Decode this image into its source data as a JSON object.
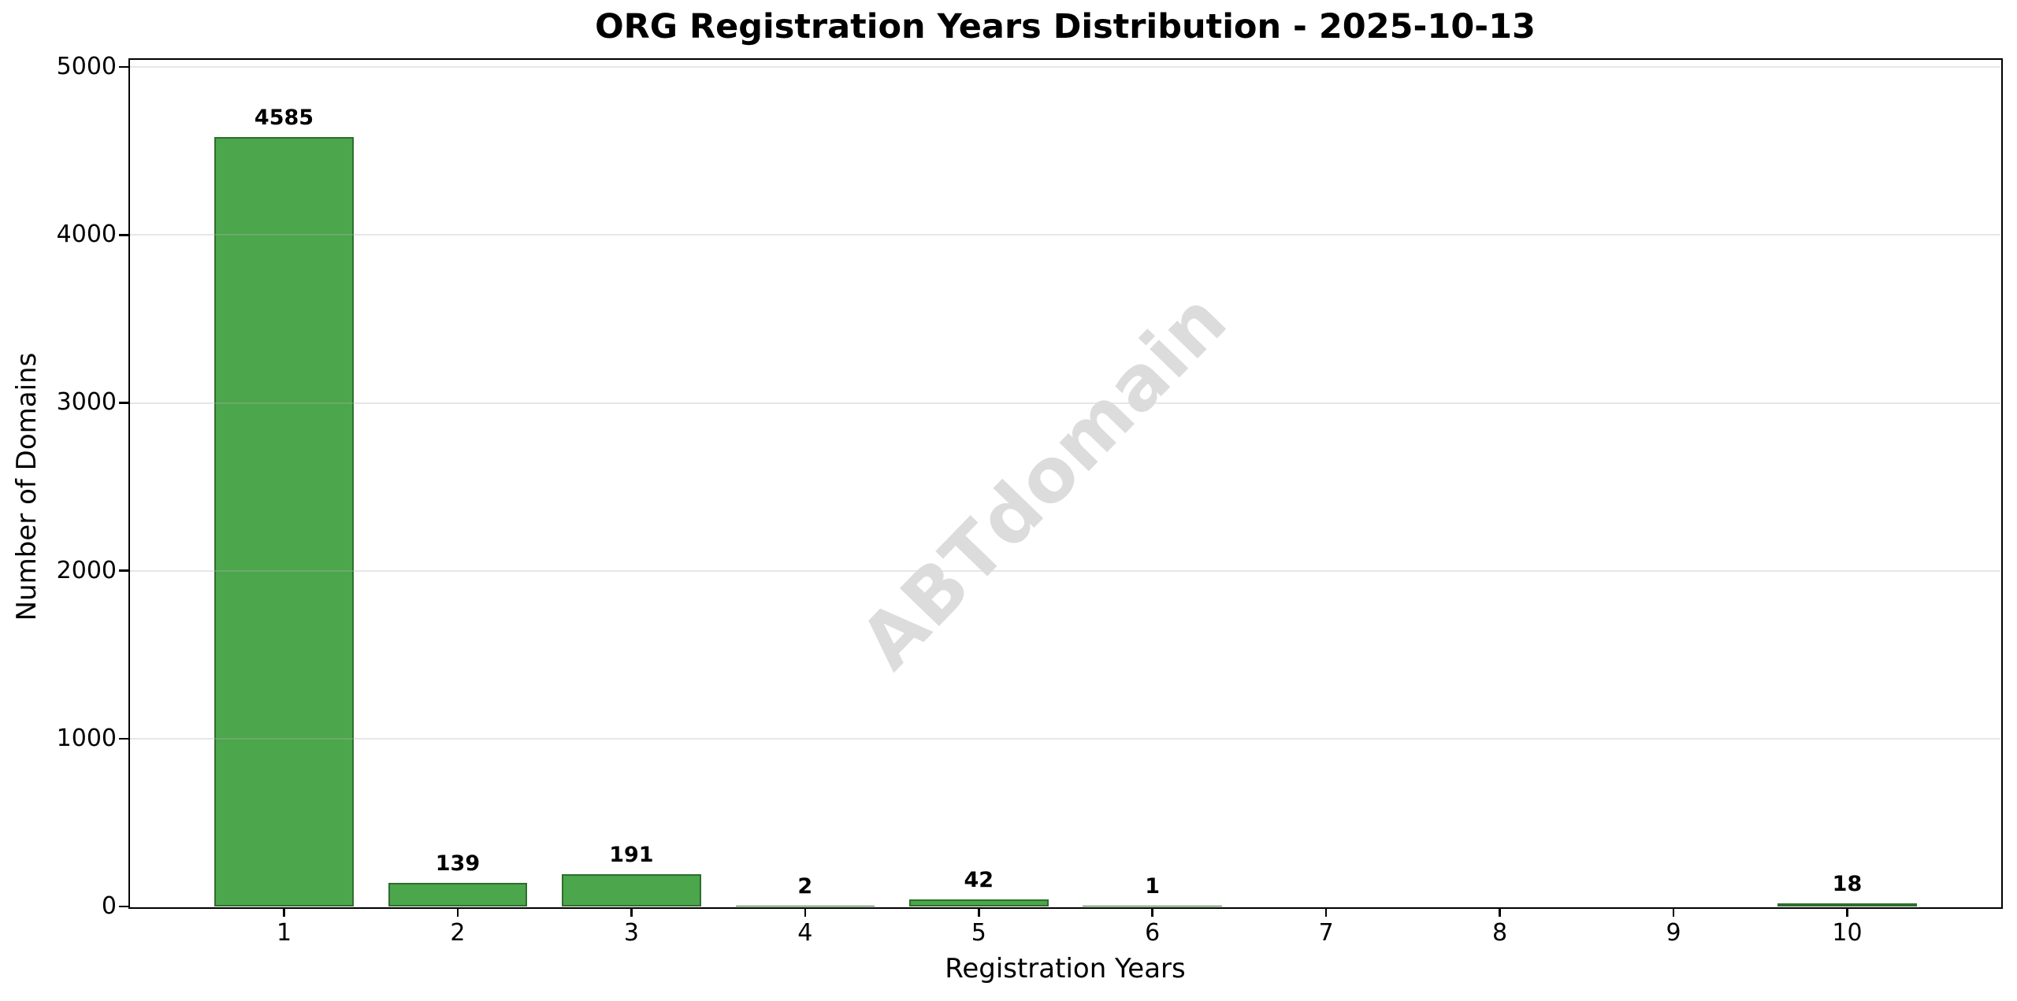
{
  "chart_data": {
    "type": "bar",
    "title": "ORG Registration Years Distribution - 2025-10-13",
    "xlabel": "Registration Years",
    "ylabel": "Number of Domains",
    "categories": [
      "1",
      "2",
      "3",
      "4",
      "5",
      "6",
      "7",
      "8",
      "9",
      "10"
    ],
    "values": [
      4585,
      139,
      191,
      2,
      42,
      1,
      0,
      0,
      0,
      18
    ],
    "bar_value_labels": [
      "4585",
      "139",
      "191",
      "2",
      "42",
      "1",
      "",
      "",
      "",
      "18"
    ],
    "yticks": [
      0,
      1000,
      2000,
      3000,
      4000,
      5000
    ],
    "ylim": [
      0,
      5043
    ],
    "grid": "horizontal",
    "legend_position": "none",
    "watermark": "ABTdomain",
    "colors": {
      "bar_fill": "#4ca64c",
      "bar_edge": "#2d6e2d",
      "grid": "#b0b0b0",
      "text": "#000000",
      "watermark": "#dcdcdc",
      "background": "#ffffff"
    }
  }
}
